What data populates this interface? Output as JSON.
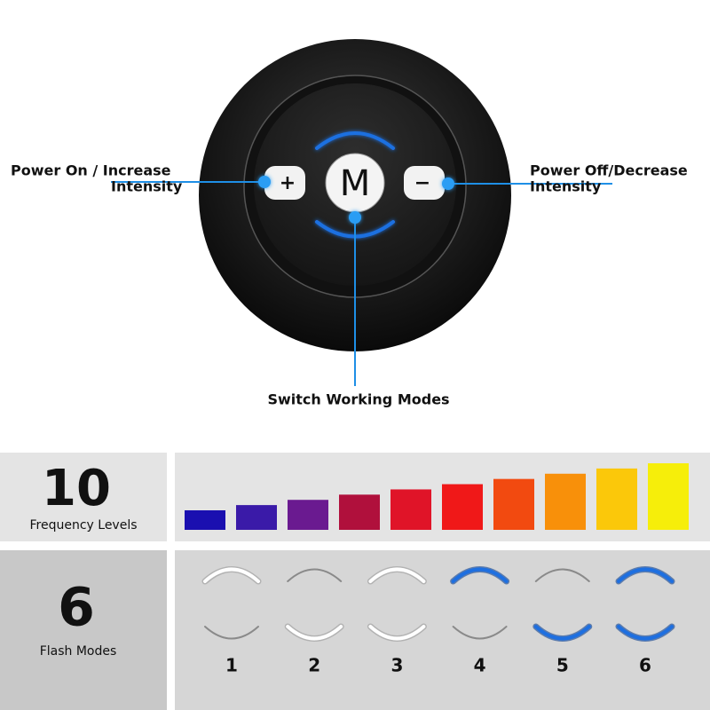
{
  "device": {
    "plus_button": "+",
    "mode_button": "M",
    "minus_button": "−",
    "left_callout": [
      "Power On / Increase",
      "Intensity"
    ],
    "right_callout": [
      "Power Off/Decrease",
      "Intensity"
    ],
    "bottom_callout": "Switch Working Modes"
  },
  "frequency": {
    "count": "10",
    "label": "Frequency Levels",
    "bar_colors": [
      "#1a0fb0",
      "#3a1aa8",
      "#6a1a90",
      "#b0103c",
      "#e01428",
      "#f01818",
      "#f24a10",
      "#f8900a",
      "#fbc80a",
      "#f6ee0a"
    ]
  },
  "flash": {
    "count": "6",
    "label": "Flash Modes",
    "modes": [
      {
        "label": "1",
        "top": "#ffffff",
        "bottom": "#bdbdbd"
      },
      {
        "label": "2",
        "top": "#bdbdbd",
        "bottom": "#ffffff"
      },
      {
        "label": "3",
        "top": "#ffffff",
        "bottom": "#ffffff"
      },
      {
        "label": "4",
        "top": "#1e6fe0",
        "bottom": "#bdbdbd"
      },
      {
        "label": "5",
        "top": "#bdbdbd",
        "bottom": "#1e6fe0"
      },
      {
        "label": "6",
        "top": "#1e6fe0",
        "bottom": "#1e6fe0"
      }
    ]
  }
}
